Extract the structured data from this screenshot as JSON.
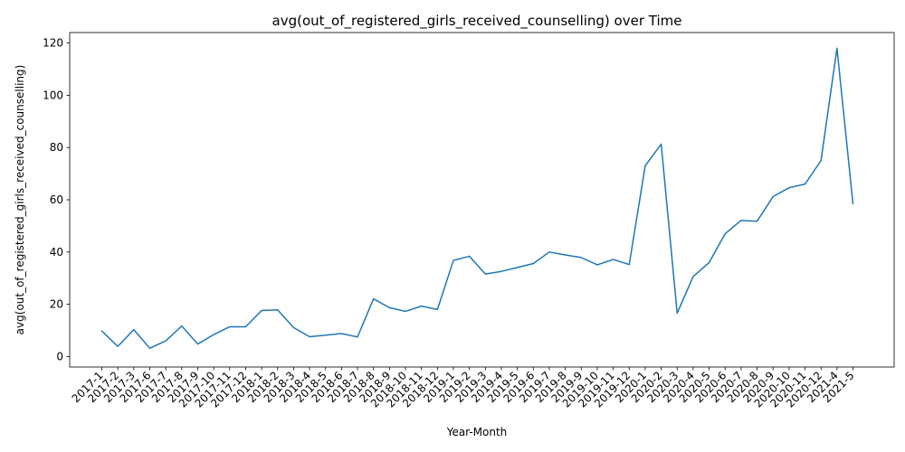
{
  "chart_data": {
    "type": "line",
    "title": "avg(out_of_registered_girls_received_counselling) over Time",
    "xlabel": "Year-Month",
    "ylabel": "avg(out_of_registered_girls_received_counselling)",
    "ylim": [
      -4,
      124
    ],
    "yticks": [
      0,
      20,
      40,
      60,
      80,
      100,
      120
    ],
    "grid": false,
    "color": "#1f77b4",
    "categories": [
      "2017-1",
      "2017-2",
      "2017-3",
      "2017-6",
      "2017-7",
      "2017-8",
      "2017-9",
      "2017-10",
      "2017-11",
      "2017-12",
      "2018-1",
      "2018-2",
      "2018-3",
      "2018-4",
      "2018-5",
      "2018-6",
      "2018-7",
      "2018-8",
      "2018-9",
      "2018-10",
      "2018-11",
      "2018-12",
      "2019-1",
      "2019-2",
      "2019-3",
      "2019-4",
      "2019-5",
      "2019-6",
      "2019-7",
      "2019-8",
      "2019-9",
      "2019-10",
      "2019-11",
      "2019-12",
      "2020-1",
      "2020-2",
      "2020-3",
      "2020-4",
      "2020-5",
      "2020-6",
      "2020-7",
      "2020-8",
      "2020-9",
      "2020-10",
      "2020-11",
      "2020-12",
      "2021-4",
      "2021-5"
    ],
    "values": [
      9.8,
      3.9,
      10.3,
      3.2,
      6.0,
      11.7,
      4.8,
      8.4,
      11.4,
      11.4,
      17.6,
      17.9,
      11.1,
      7.6,
      8.2,
      8.8,
      7.5,
      22.1,
      18.7,
      17.3,
      19.3,
      18.0,
      36.8,
      38.4,
      31.6,
      32.6,
      34.1,
      35.6,
      40.0,
      38.9,
      37.9,
      35.1,
      37.2,
      35.2,
      73.0,
      81.3,
      16.6,
      30.6,
      36.0,
      47.0,
      52.1,
      51.8,
      61.2,
      64.6,
      66.0,
      75.0,
      118.0,
      58.5
    ]
  }
}
